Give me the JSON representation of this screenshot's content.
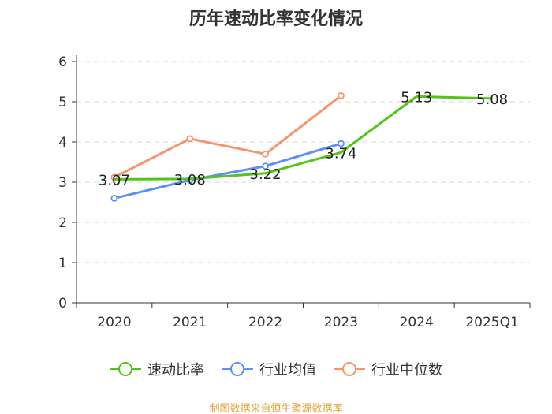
{
  "chart_data": {
    "type": "line",
    "title": "历年速动比率变化情况",
    "categories": [
      "2020",
      "2021",
      "2022",
      "2023",
      "2024",
      "2025Q1"
    ],
    "ylim": [
      0,
      6
    ],
    "yticks": [
      0,
      1,
      2,
      3,
      4,
      5,
      6
    ],
    "grid": true,
    "legend_position": "bottom",
    "series": [
      {
        "name": "速动比率",
        "color": "#52c41a",
        "values": [
          3.07,
          3.08,
          3.22,
          3.74,
          5.13,
          5.08
        ],
        "labels": [
          "3.07",
          "3.08",
          "3.22",
          "3.74",
          "5.13",
          "5.08"
        ]
      },
      {
        "name": "行业均值",
        "color": "#5b8ff9",
        "values": [
          2.6,
          3.05,
          3.4,
          3.96,
          null,
          null
        ]
      },
      {
        "name": "行业中位数",
        "color": "#f6946b",
        "values": [
          3.12,
          4.08,
          3.7,
          5.15,
          null,
          null
        ]
      }
    ]
  },
  "source_note": "制图数据来自恒生聚源数据库",
  "source_note_color": "#e0a030"
}
